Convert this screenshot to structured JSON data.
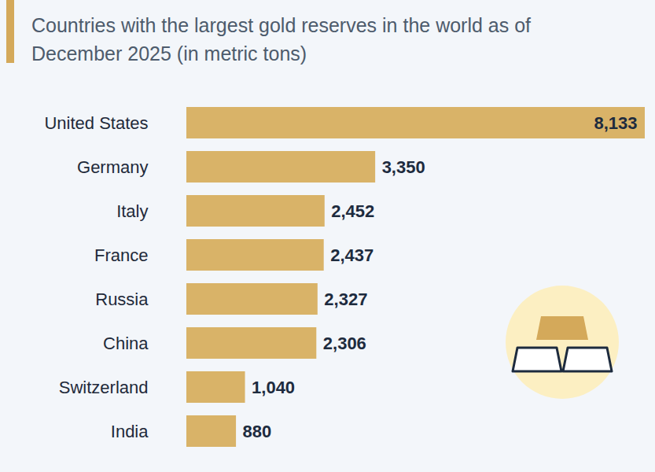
{
  "chart_data": {
    "type": "bar",
    "subtitle": "Countries with the largest gold reserves in the world as of December 2025 (in metric tons)",
    "orientation": "horizontal",
    "categories": [
      "United States",
      "Germany",
      "Italy",
      "France",
      "Russia",
      "China",
      "Switzerland",
      "India"
    ],
    "values": [
      8133,
      3350,
      2452,
      2437,
      2327,
      2306,
      1040,
      880
    ],
    "value_labels": [
      "8,133",
      "3,350",
      "2,452",
      "2,437",
      "2,327",
      "2,306",
      "1,040",
      "880"
    ],
    "color": "#d9b368",
    "xlim": [
      0,
      8133
    ],
    "data_labels": true,
    "tick_labels": "y",
    "grid": false
  }
}
